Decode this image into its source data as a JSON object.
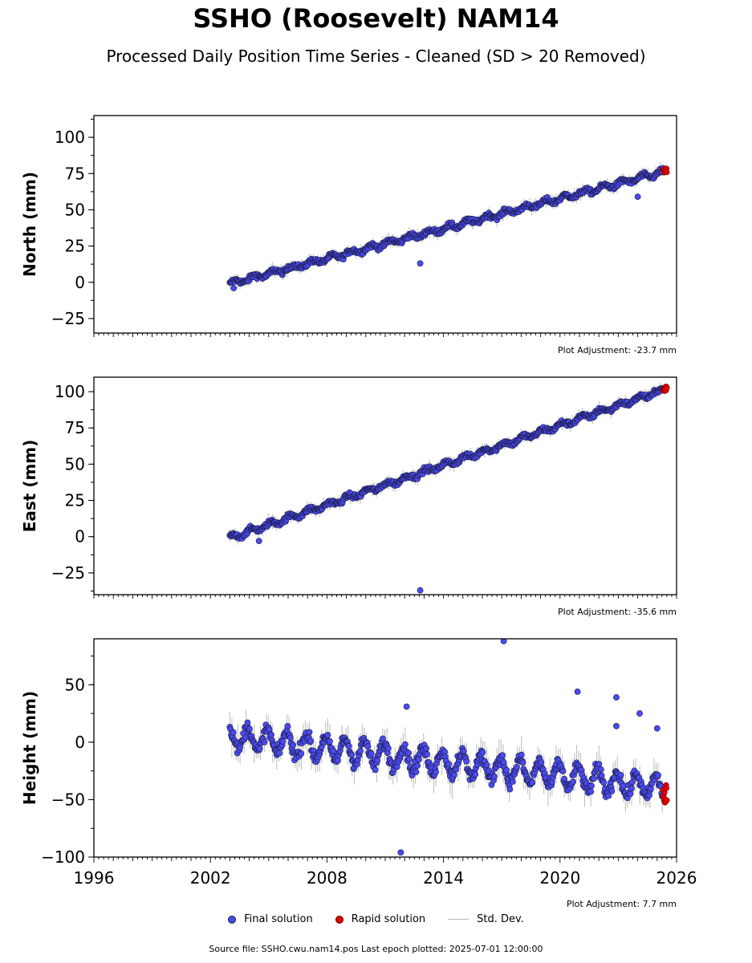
{
  "header": {
    "title": "SSHO (Roosevelt) NAM14",
    "subtitle": "Processed Daily Position Time Series - Cleaned (SD > 20 Removed)"
  },
  "legend": {
    "final": "Final solution",
    "rapid": "Rapid solution",
    "std": "Std. Dev."
  },
  "footer": "Source file: SSHO.cwu.nam14.pos  Last epoch plotted: 2025-07-01 12:00:00",
  "colors": {
    "final": "#4a4aee",
    "final_edge": "#1a1a40",
    "rapid": "#e00000",
    "std": "#bbbbbb"
  },
  "chart_data": [
    {
      "type": "scatter",
      "ylabel": "North (mm)",
      "adjustment": "Plot Adjustment: -23.7 mm",
      "xlim": [
        1996,
        2026
      ],
      "ylim": [
        -35,
        115
      ],
      "yticks": [
        -25,
        0,
        25,
        50,
        75,
        100
      ],
      "x_tick_labels_shown": false,
      "final_series": {
        "start": 2003.0,
        "end": 2025.3,
        "start_value": -1,
        "end_value": 76,
        "seasonal_amplitude": 1.5,
        "noise": 1.2
      },
      "rapid_series": {
        "start": 2025.3,
        "end": 2025.5,
        "value": 77
      },
      "outliers": [
        {
          "x": 2012.8,
          "y": 13
        },
        {
          "x": 2003.2,
          "y": -4
        },
        {
          "x": 2024.0,
          "y": 59
        }
      ]
    },
    {
      "type": "scatter",
      "ylabel": "East (mm)",
      "adjustment": "Plot Adjustment: -35.6 mm",
      "xlim": [
        1996,
        2026
      ],
      "ylim": [
        -40,
        110
      ],
      "yticks": [
        -25,
        0,
        25,
        50,
        75,
        100
      ],
      "x_tick_labels_shown": false,
      "final_series": {
        "start": 2003.0,
        "end": 2025.3,
        "start_value": -1,
        "end_value": 101,
        "seasonal_amplitude": 1.5,
        "noise": 1.2
      },
      "rapid_series": {
        "start": 2025.3,
        "end": 2025.5,
        "value": 102
      },
      "outliers": [
        {
          "x": 2012.8,
          "y": -37
        },
        {
          "x": 2004.5,
          "y": -3
        }
      ]
    },
    {
      "type": "scatter",
      "ylabel": "Height (mm)",
      "adjustment": "Plot Adjustment: 7.7 mm",
      "xlim": [
        1996,
        2026
      ],
      "ylim": [
        -100,
        90
      ],
      "yticks": [
        -100,
        -50,
        0,
        50
      ],
      "xticks": [
        1996,
        2002,
        2008,
        2014,
        2020,
        2026
      ],
      "x_tick_labels_shown": true,
      "final_series": {
        "start": 2003.0,
        "end": 2025.3,
        "start_value": 5,
        "end_value": -40,
        "seasonal_amplitude": 10,
        "noise": 4
      },
      "rapid_series": {
        "start": 2025.3,
        "end": 2025.5,
        "value": -45
      },
      "outliers": [
        {
          "x": 2017.1,
          "y": 88
        },
        {
          "x": 2020.9,
          "y": 44
        },
        {
          "x": 2022.9,
          "y": 39
        },
        {
          "x": 2024.1,
          "y": 25
        },
        {
          "x": 2012.1,
          "y": 31
        },
        {
          "x": 2011.8,
          "y": -96
        },
        {
          "x": 2025.0,
          "y": 12
        },
        {
          "x": 2022.9,
          "y": 14
        }
      ]
    }
  ]
}
